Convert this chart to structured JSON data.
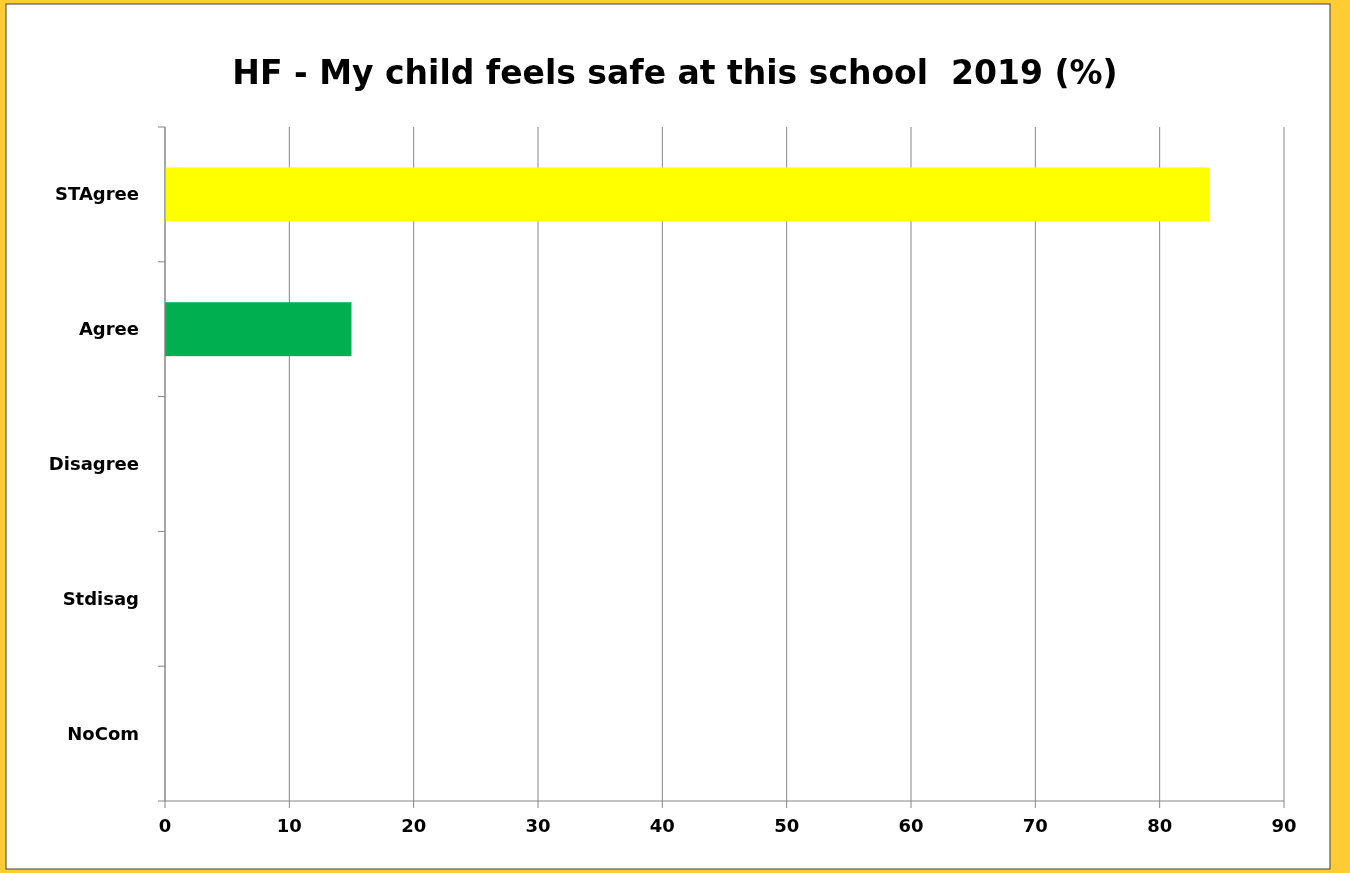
{
  "chart_data": {
    "type": "bar",
    "title": "HF - My child feels safe at this school  2019 (%)",
    "orientation": "horizontal",
    "categories": [
      "STAgree",
      "Agree",
      "Disagree",
      "Stdisag",
      "NoCom"
    ],
    "values": [
      84,
      15,
      0,
      0,
      0
    ],
    "colors": [
      "#ffff00",
      "#00b050",
      "#00b050",
      "#00b050",
      "#00b050"
    ],
    "xlim": [
      0,
      90
    ],
    "xticks": [
      0,
      10,
      20,
      30,
      40,
      50,
      60,
      70,
      80,
      90
    ],
    "grid": "x"
  }
}
